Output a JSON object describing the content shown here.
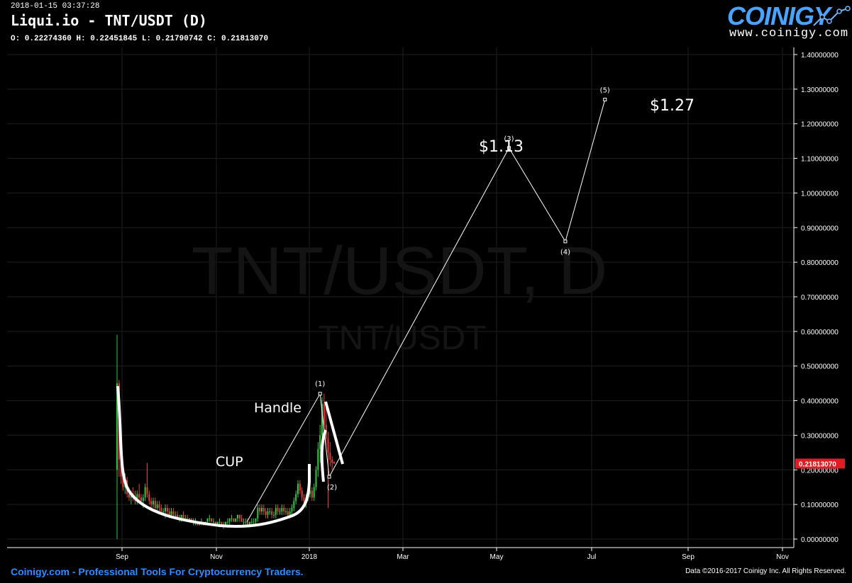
{
  "header": {
    "datetime": "2018-01-15 03:37:28",
    "title": "Liqui.io - TNT/USDT (D)",
    "ohlc": "O: 0.22274360 H: 0.22451845 L: 0.21790742 C: 0.21813070"
  },
  "logo": {
    "word": "COINIGY",
    "url": "www.coinigy.com"
  },
  "footer": {
    "left": "Coinigy.com - Professional Tools For Cryptocurrency Traders.",
    "right": "Data ©2016-2017 Coinigy Inc. All Rights Reserved."
  },
  "colors": {
    "up": "#2ecc40",
    "down": "#e8423c",
    "price_tag": "#e31b23",
    "grid": "#1f1f1f",
    "brand": "#4aa3ff"
  },
  "chart_data": {
    "type": "candlestick",
    "watermark": "TNT/USDT, D",
    "watermark_sub": "TNT/USDT",
    "x_ticks": [
      "Sep",
      "Nov",
      "2018",
      "Mar",
      "May",
      "Jul",
      "Sep",
      "Nov"
    ],
    "y_ticks": [
      "1.40000000",
      "1.30000000",
      "1.20000000",
      "1.10000000",
      "1.00000000",
      "0.90000000",
      "0.80000000",
      "0.70000000",
      "0.60000000",
      "0.50000000",
      "0.40000000",
      "0.30000000",
      "0.20000000",
      "0.10000000",
      "0.00000000"
    ],
    "ylim": [
      0,
      1.4
    ],
    "last_price": "0.21813070",
    "annotations": [
      {
        "text": "CUP"
      },
      {
        "text": "Handle"
      },
      {
        "text": "$1.13"
      },
      {
        "text": "$1.27"
      }
    ],
    "wave_labels": [
      "(1)",
      "(2)",
      "(3)",
      "(4)",
      "(5)"
    ],
    "wave_path": [
      {
        "date": "2017-11-22",
        "price": 0.05
      },
      {
        "date": "2018-01-09",
        "price": 0.42
      },
      {
        "date": "2018-01-15",
        "price": 0.18
      },
      {
        "date": "2018-05-13",
        "price": 1.13
      },
      {
        "date": "2018-06-19",
        "price": 0.86
      },
      {
        "date": "2018-07-15",
        "price": 1.27
      }
    ],
    "candles": [
      [
        0.2,
        0.59,
        0.0,
        0.45
      ],
      [
        0.45,
        0.46,
        0.18,
        0.23
      ],
      [
        0.23,
        0.26,
        0.16,
        0.18
      ],
      [
        0.18,
        0.22,
        0.14,
        0.15
      ],
      [
        0.15,
        0.19,
        0.13,
        0.17
      ],
      [
        0.17,
        0.18,
        0.12,
        0.13
      ],
      [
        0.13,
        0.15,
        0.11,
        0.12
      ],
      [
        0.12,
        0.14,
        0.1,
        0.13
      ],
      [
        0.13,
        0.15,
        0.11,
        0.12
      ],
      [
        0.12,
        0.14,
        0.1,
        0.11
      ],
      [
        0.11,
        0.14,
        0.1,
        0.13
      ],
      [
        0.13,
        0.16,
        0.11,
        0.12
      ],
      [
        0.12,
        0.13,
        0.1,
        0.11
      ],
      [
        0.11,
        0.13,
        0.09,
        0.12
      ],
      [
        0.12,
        0.16,
        0.11,
        0.15
      ],
      [
        0.15,
        0.22,
        0.12,
        0.13
      ],
      [
        0.13,
        0.14,
        0.1,
        0.11
      ],
      [
        0.11,
        0.12,
        0.09,
        0.1
      ],
      [
        0.1,
        0.12,
        0.09,
        0.11
      ],
      [
        0.11,
        0.12,
        0.08,
        0.09
      ],
      [
        0.09,
        0.11,
        0.08,
        0.1
      ],
      [
        0.1,
        0.11,
        0.08,
        0.09
      ],
      [
        0.09,
        0.1,
        0.07,
        0.08
      ],
      [
        0.08,
        0.09,
        0.07,
        0.08
      ],
      [
        0.08,
        0.1,
        0.06,
        0.09
      ],
      [
        0.09,
        0.1,
        0.07,
        0.08
      ],
      [
        0.08,
        0.09,
        0.06,
        0.07
      ],
      [
        0.07,
        0.09,
        0.06,
        0.08
      ],
      [
        0.08,
        0.09,
        0.06,
        0.07
      ],
      [
        0.07,
        0.08,
        0.06,
        0.07
      ],
      [
        0.07,
        0.08,
        0.06,
        0.06
      ],
      [
        0.06,
        0.07,
        0.05,
        0.06
      ],
      [
        0.06,
        0.07,
        0.05,
        0.07
      ],
      [
        0.07,
        0.08,
        0.06,
        0.06
      ],
      [
        0.06,
        0.07,
        0.05,
        0.06
      ],
      [
        0.06,
        0.07,
        0.05,
        0.05
      ],
      [
        0.05,
        0.06,
        0.05,
        0.06
      ],
      [
        0.06,
        0.06,
        0.05,
        0.05
      ],
      [
        0.05,
        0.06,
        0.04,
        0.05
      ],
      [
        0.05,
        0.06,
        0.04,
        0.05
      ],
      [
        0.05,
        0.05,
        0.04,
        0.04
      ],
      [
        0.04,
        0.05,
        0.04,
        0.05
      ],
      [
        0.05,
        0.06,
        0.04,
        0.05
      ],
      [
        0.05,
        0.05,
        0.04,
        0.04
      ],
      [
        0.04,
        0.05,
        0.04,
        0.05
      ],
      [
        0.05,
        0.06,
        0.04,
        0.06
      ],
      [
        0.06,
        0.07,
        0.05,
        0.06
      ],
      [
        0.06,
        0.06,
        0.05,
        0.05
      ],
      [
        0.05,
        0.06,
        0.04,
        0.05
      ],
      [
        0.05,
        0.05,
        0.04,
        0.04
      ],
      [
        0.04,
        0.05,
        0.04,
        0.05
      ],
      [
        0.05,
        0.06,
        0.04,
        0.05
      ],
      [
        0.05,
        0.05,
        0.04,
        0.04
      ],
      [
        0.04,
        0.05,
        0.03,
        0.04
      ],
      [
        0.04,
        0.05,
        0.04,
        0.05
      ],
      [
        0.05,
        0.06,
        0.04,
        0.05
      ],
      [
        0.05,
        0.06,
        0.04,
        0.06
      ],
      [
        0.06,
        0.07,
        0.05,
        0.06
      ],
      [
        0.06,
        0.06,
        0.05,
        0.05
      ],
      [
        0.05,
        0.06,
        0.05,
        0.06
      ],
      [
        0.06,
        0.07,
        0.05,
        0.07
      ],
      [
        0.07,
        0.07,
        0.05,
        0.06
      ],
      [
        0.06,
        0.07,
        0.05,
        0.05
      ],
      [
        0.05,
        0.06,
        0.04,
        0.05
      ],
      [
        0.05,
        0.06,
        0.04,
        0.05
      ],
      [
        0.05,
        0.06,
        0.04,
        0.04
      ],
      [
        0.04,
        0.05,
        0.04,
        0.05
      ],
      [
        0.05,
        0.06,
        0.04,
        0.05
      ],
      [
        0.05,
        0.06,
        0.04,
        0.05
      ],
      [
        0.05,
        0.06,
        0.04,
        0.06
      ],
      [
        0.06,
        0.1,
        0.05,
        0.09
      ],
      [
        0.09,
        0.1,
        0.07,
        0.08
      ],
      [
        0.08,
        0.1,
        0.07,
        0.09
      ],
      [
        0.09,
        0.1,
        0.07,
        0.08
      ],
      [
        0.08,
        0.09,
        0.06,
        0.07
      ],
      [
        0.07,
        0.09,
        0.06,
        0.08
      ],
      [
        0.08,
        0.09,
        0.07,
        0.08
      ],
      [
        0.08,
        0.09,
        0.06,
        0.07
      ],
      [
        0.07,
        0.08,
        0.06,
        0.07
      ],
      [
        0.07,
        0.1,
        0.06,
        0.09
      ],
      [
        0.09,
        0.1,
        0.07,
        0.08
      ],
      [
        0.08,
        0.09,
        0.07,
        0.08
      ],
      [
        0.08,
        0.1,
        0.07,
        0.09
      ],
      [
        0.09,
        0.1,
        0.07,
        0.08
      ],
      [
        0.08,
        0.09,
        0.07,
        0.08
      ],
      [
        0.08,
        0.09,
        0.06,
        0.07
      ],
      [
        0.07,
        0.09,
        0.06,
        0.08
      ],
      [
        0.08,
        0.1,
        0.07,
        0.09
      ],
      [
        0.09,
        0.12,
        0.08,
        0.11
      ],
      [
        0.11,
        0.14,
        0.1,
        0.13
      ],
      [
        0.13,
        0.17,
        0.12,
        0.16
      ],
      [
        0.16,
        0.17,
        0.13,
        0.14
      ],
      [
        0.14,
        0.15,
        0.11,
        0.12
      ],
      [
        0.12,
        0.13,
        0.1,
        0.11
      ],
      [
        0.11,
        0.13,
        0.09,
        0.12
      ],
      [
        0.12,
        0.14,
        0.11,
        0.13
      ],
      [
        0.13,
        0.15,
        0.12,
        0.14
      ],
      [
        0.14,
        0.15,
        0.11,
        0.12
      ],
      [
        0.12,
        0.16,
        0.11,
        0.15
      ],
      [
        0.15,
        0.21,
        0.14,
        0.2
      ],
      [
        0.2,
        0.28,
        0.18,
        0.26
      ],
      [
        0.26,
        0.33,
        0.22,
        0.3
      ],
      [
        0.3,
        0.41,
        0.27,
        0.39
      ],
      [
        0.39,
        0.42,
        0.31,
        0.33
      ],
      [
        0.33,
        0.38,
        0.27,
        0.29
      ],
      [
        0.29,
        0.31,
        0.09,
        0.25
      ],
      [
        0.25,
        0.28,
        0.21,
        0.23
      ],
      [
        0.23,
        0.24,
        0.2,
        0.22
      ],
      [
        0.2227436,
        0.22451845,
        0.21790742,
        0.2181307
      ]
    ]
  }
}
